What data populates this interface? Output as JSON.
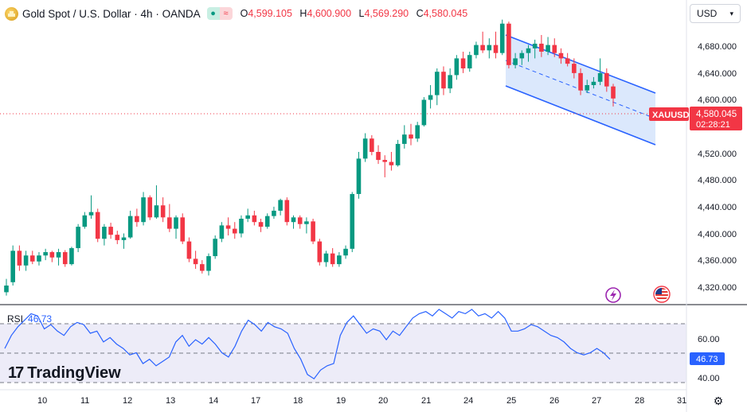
{
  "header": {
    "title": "Gold Spot / U.S. Dollar · 4h · OANDA",
    "open_label": "O",
    "open": "4,599.105",
    "high_label": "H",
    "high": "4,600.900",
    "low_label": "L",
    "low": "4,569.290",
    "close_label": "C",
    "close": "4,580.045",
    "indicator_on_icon": "circle-dot-icon",
    "indicator_off_icon": "wave-icon"
  },
  "currency_selector": {
    "value": "USD"
  },
  "price_axis": {
    "ticks": [
      "4,680.000",
      "4,640.000",
      "4,600.000",
      "4,520.000",
      "4,480.000",
      "4,440.000",
      "4,400.000",
      "4,360.000",
      "4,320.000"
    ],
    "symbol_tag": "XAUUSD",
    "last_price": "4,580.045",
    "countdown": "02:28:21"
  },
  "time_axis": {
    "ticks": [
      "10",
      "11",
      "12",
      "13",
      "14",
      "17",
      "18",
      "19",
      "20",
      "21",
      "24",
      "25",
      "26",
      "27",
      "28",
      "31"
    ]
  },
  "rsi": {
    "label": "RSI",
    "value": "46.73",
    "axis_ticks": [
      "60.00",
      "40.00"
    ],
    "value_tag": "46.73"
  },
  "brand": {
    "name": "TradingView"
  },
  "colors": {
    "up": "#089981",
    "down": "#f23645",
    "channel_line": "#2962ff",
    "channel_fill": "#cfe0fb",
    "rsi_line": "#2962ff",
    "rsi_band": "#e6e4f5",
    "last_price_tag": "#f23645"
  },
  "icons": {
    "lightning_badge": "lightning-icon",
    "us_flag_badge": "us-flag-icon",
    "settings": "gear-icon"
  },
  "chart_data": {
    "type": "candlestick",
    "price_ylim": [
      4300,
      4700
    ],
    "rsi_ylim": [
      30,
      70
    ],
    "candles": [
      [
        4290,
        4310,
        4285,
        4300
      ],
      [
        4305,
        4360,
        4300,
        4352
      ],
      [
        4352,
        4360,
        4322,
        4330
      ],
      [
        4330,
        4352,
        4322,
        4345
      ],
      [
        4345,
        4352,
        4332,
        4336
      ],
      [
        4336,
        4350,
        4330,
        4345
      ],
      [
        4345,
        4355,
        4338,
        4350
      ],
      [
        4350,
        4352,
        4335,
        4342
      ],
      [
        4342,
        4355,
        4330,
        4350
      ],
      [
        4350,
        4353,
        4328,
        4332
      ],
      [
        4332,
        4358,
        4330,
        4356
      ],
      [
        4356,
        4392,
        4350,
        4388
      ],
      [
        4388,
        4410,
        4385,
        4405
      ],
      [
        4405,
        4435,
        4400,
        4410
      ],
      [
        4410,
        4415,
        4365,
        4370
      ],
      [
        4370,
        4392,
        4360,
        4388
      ],
      [
        4388,
        4394,
        4370,
        4376
      ],
      [
        4376,
        4382,
        4362,
        4368
      ],
      [
        4368,
        4378,
        4355,
        4372
      ],
      [
        4372,
        4412,
        4370,
        4404
      ],
      [
        4404,
        4415,
        4388,
        4395
      ],
      [
        4395,
        4440,
        4390,
        4432
      ],
      [
        4432,
        4435,
        4398,
        4402
      ],
      [
        4402,
        4450,
        4400,
        4420
      ],
      [
        4420,
        4432,
        4395,
        4402
      ],
      [
        4402,
        4422,
        4380,
        4385
      ],
      [
        4385,
        4405,
        4370,
        4402
      ],
      [
        4402,
        4408,
        4362,
        4366
      ],
      [
        4366,
        4372,
        4335,
        4340
      ],
      [
        4340,
        4352,
        4325,
        4332
      ],
      [
        4332,
        4338,
        4318,
        4322
      ],
      [
        4322,
        4348,
        4315,
        4344
      ],
      [
        4344,
        4375,
        4340,
        4370
      ],
      [
        4370,
        4395,
        4365,
        4390
      ],
      [
        4390,
        4402,
        4375,
        4385
      ],
      [
        4385,
        4395,
        4370,
        4378
      ],
      [
        4378,
        4405,
        4372,
        4400
      ],
      [
        4400,
        4415,
        4395,
        4405
      ],
      [
        4405,
        4412,
        4390,
        4395
      ],
      [
        4395,
        4400,
        4380,
        4388
      ],
      [
        4388,
        4408,
        4385,
        4404
      ],
      [
        4404,
        4418,
        4400,
        4412
      ],
      [
        4412,
        4430,
        4405,
        4428
      ],
      [
        4428,
        4432,
        4390,
        4395
      ],
      [
        4395,
        4405,
        4385,
        4402
      ],
      [
        4402,
        4405,
        4385,
        4392
      ],
      [
        4392,
        4402,
        4378,
        4396
      ],
      [
        4396,
        4400,
        4362,
        4366
      ],
      [
        4366,
        4370,
        4330,
        4335
      ],
      [
        4335,
        4352,
        4328,
        4348
      ],
      [
        4348,
        4356,
        4328,
        4332
      ],
      [
        4332,
        4350,
        4328,
        4345
      ],
      [
        4345,
        4360,
        4340,
        4355
      ],
      [
        4355,
        4440,
        4350,
        4437
      ],
      [
        4437,
        4500,
        4430,
        4490
      ],
      [
        4490,
        4528,
        4485,
        4520
      ],
      [
        4520,
        4525,
        4495,
        4500
      ],
      [
        4500,
        4510,
        4482,
        4488
      ],
      [
        4488,
        4495,
        4462,
        4485
      ],
      [
        4485,
        4500,
        4472,
        4480
      ],
      [
        4480,
        4518,
        4478,
        4512
      ],
      [
        4512,
        4540,
        4505,
        4526
      ],
      [
        4526,
        4542,
        4510,
        4520
      ],
      [
        4520,
        4545,
        4515,
        4540
      ],
      [
        4540,
        4582,
        4538,
        4578
      ],
      [
        4578,
        4600,
        4565,
        4585
      ],
      [
        4585,
        4625,
        4570,
        4620
      ],
      [
        4620,
        4628,
        4585,
        4595
      ],
      [
        4595,
        4625,
        4588,
        4615
      ],
      [
        4615,
        4645,
        4608,
        4640
      ],
      [
        4640,
        4650,
        4618,
        4625
      ],
      [
        4625,
        4650,
        4620,
        4645
      ],
      [
        4645,
        4665,
        4640,
        4660
      ],
      [
        4660,
        4680,
        4648,
        4652
      ],
      [
        4652,
        4670,
        4640,
        4660
      ],
      [
        4660,
        4680,
        4640,
        4648
      ],
      [
        4648,
        4698,
        4645,
        4692
      ],
      [
        4692,
        4695,
        4625,
        4630
      ],
      [
        4630,
        4648,
        4625,
        4640
      ],
      [
        4640,
        4652,
        4630,
        4648
      ],
      [
        4648,
        4660,
        4635,
        4655
      ],
      [
        4655,
        4668,
        4640,
        4662
      ],
      [
        4662,
        4675,
        4642,
        4650
      ],
      [
        4650,
        4672,
        4645,
        4660
      ],
      [
        4660,
        4670,
        4642,
        4648
      ],
      [
        4648,
        4655,
        4632,
        4640
      ],
      [
        4640,
        4648,
        4628,
        4632
      ],
      [
        4632,
        4640,
        4610,
        4618
      ],
      [
        4618,
        4625,
        4585,
        4592
      ],
      [
        4592,
        4608,
        4588,
        4600
      ],
      [
        4600,
        4612,
        4595,
        4605
      ],
      [
        4605,
        4640,
        4600,
        4618
      ],
      [
        4618,
        4625,
        4590,
        4598
      ],
      [
        4598,
        4602,
        4568,
        4580
      ]
    ],
    "rsi_values": [
      52,
      58,
      62,
      65,
      68,
      67,
      61,
      63,
      60,
      58,
      62,
      64,
      63,
      59,
      60,
      55,
      57,
      54,
      52,
      49,
      50,
      45,
      47,
      44,
      46,
      48,
      55,
      58,
      53,
      56,
      54,
      57,
      54,
      50,
      48,
      53,
      60,
      65,
      63,
      60,
      64,
      62,
      61,
      59,
      52,
      47,
      40,
      38,
      42,
      44,
      45,
      58,
      64,
      67,
      63,
      59,
      61,
      60,
      56,
      60,
      58,
      62,
      66,
      68,
      69,
      67,
      70,
      68,
      66,
      69,
      68,
      70,
      67,
      68,
      66,
      69,
      66,
      60,
      60,
      61,
      63,
      62,
      60,
      58,
      57,
      55,
      52,
      50,
      49,
      50,
      52,
      50,
      47
    ]
  }
}
